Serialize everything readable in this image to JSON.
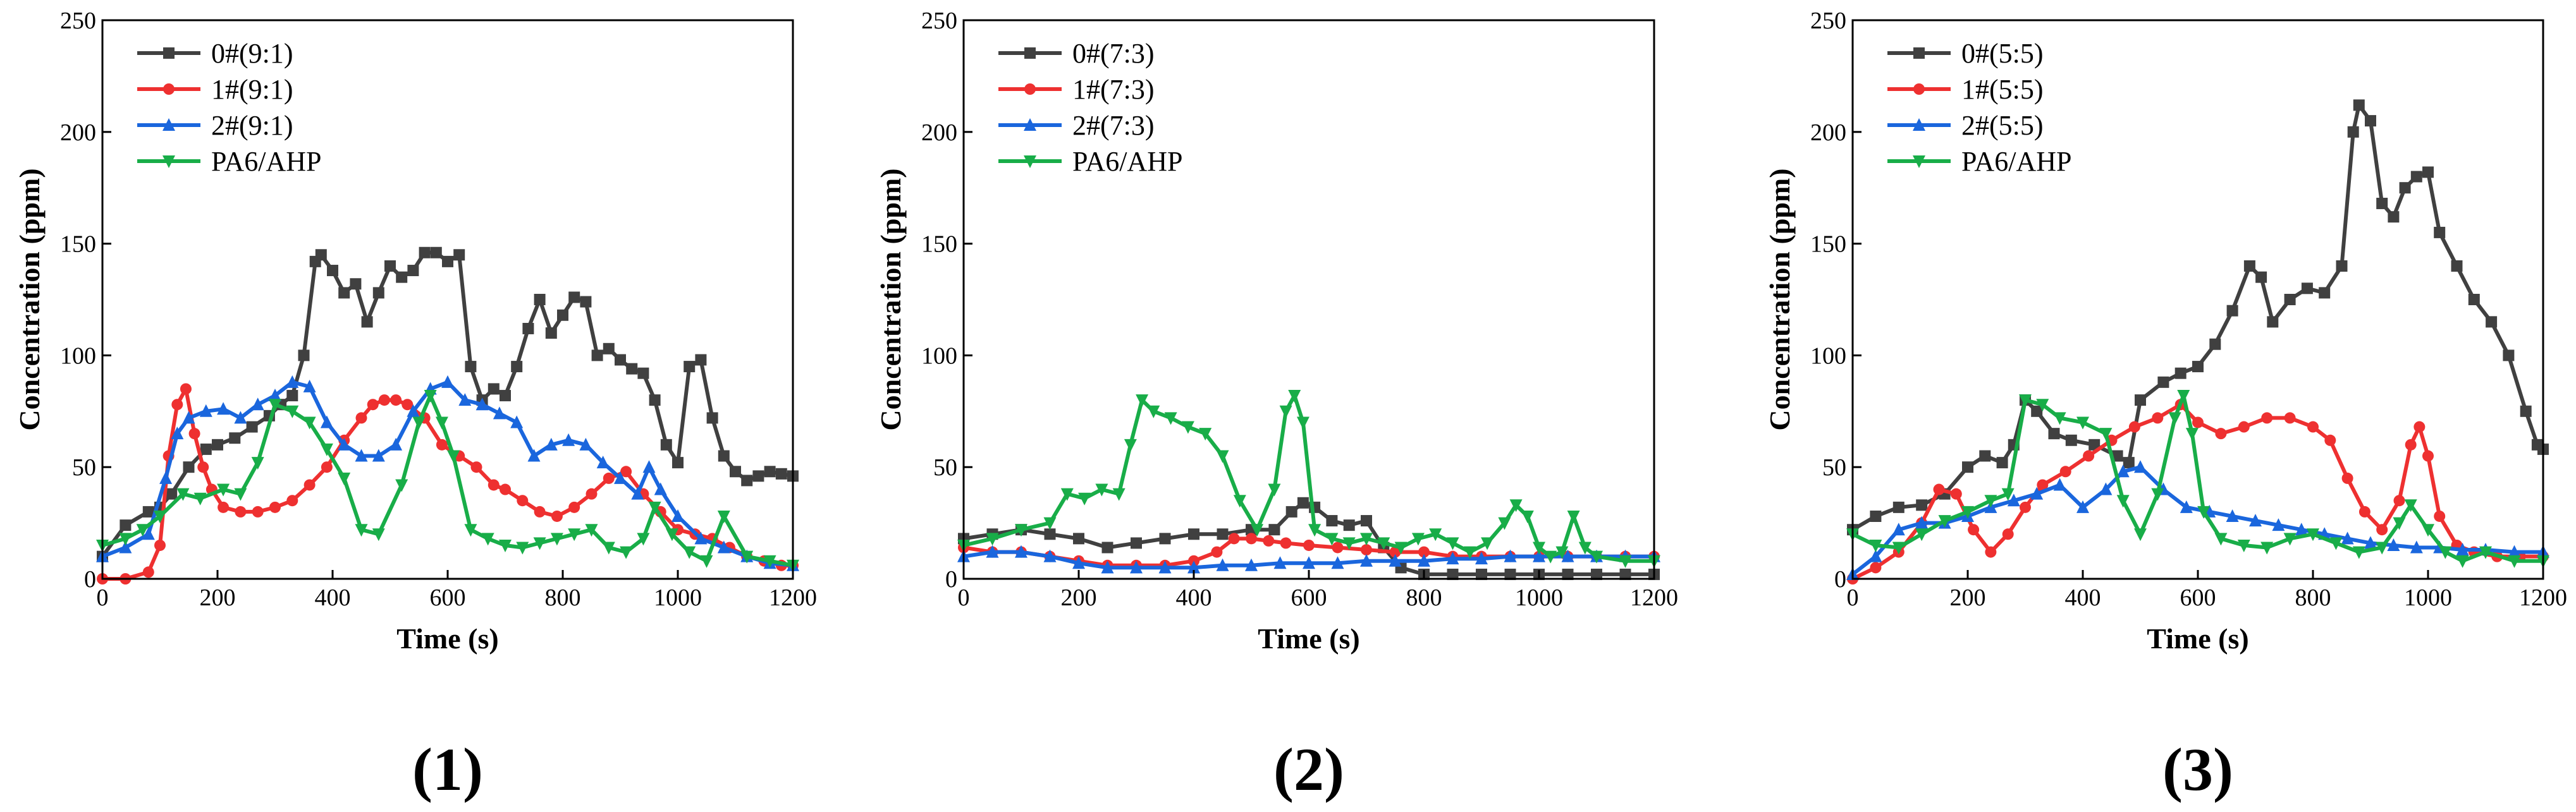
{
  "colors": {
    "0#": "#404040",
    "1#": "#ee3030",
    "2#": "#1a66dd",
    "PA6/AHP": "#18ad48"
  },
  "chart_data": [
    {
      "type": "line",
      "panel_label": "(1)",
      "xlabel": "Time (s)",
      "ylabel": "Concentration (ppm)",
      "xlim": [
        0,
        1200
      ],
      "ylim": [
        0,
        250
      ],
      "xticks": [
        0,
        200,
        400,
        600,
        800,
        1000,
        1200
      ],
      "yticks": [
        0,
        50,
        100,
        150,
        200,
        250
      ],
      "legend_position": "top-left",
      "series": [
        {
          "name": "0#(9:1)",
          "key": "0#",
          "marker": "square",
          "x": [
            0,
            40,
            80,
            100,
            120,
            150,
            180,
            200,
            230,
            260,
            290,
            310,
            330,
            350,
            370,
            380,
            400,
            420,
            440,
            460,
            480,
            500,
            520,
            540,
            560,
            580,
            600,
            620,
            640,
            660,
            680,
            700,
            720,
            740,
            760,
            780,
            800,
            820,
            840,
            860,
            880,
            900,
            920,
            940,
            960,
            980,
            1000,
            1020,
            1040,
            1060,
            1080,
            1100,
            1120,
            1140,
            1160,
            1180,
            1200
          ],
          "y": [
            10,
            24,
            30,
            32,
            38,
            50,
            58,
            60,
            63,
            68,
            73,
            78,
            82,
            100,
            142,
            145,
            138,
            128,
            132,
            115,
            128,
            140,
            135,
            138,
            146,
            146,
            142,
            145,
            95,
            80,
            85,
            82,
            95,
            112,
            125,
            110,
            118,
            126,
            124,
            100,
            103,
            98,
            94,
            92,
            80,
            60,
            52,
            95,
            98,
            72,
            55,
            48,
            44,
            46,
            48,
            47,
            46
          ]
        },
        {
          "name": "1#(9:1)",
          "key": "1#",
          "marker": "circle",
          "x": [
            0,
            40,
            80,
            100,
            115,
            130,
            145,
            160,
            175,
            190,
            210,
            240,
            270,
            300,
            330,
            360,
            390,
            420,
            450,
            470,
            490,
            510,
            530,
            560,
            590,
            620,
            650,
            680,
            700,
            730,
            760,
            790,
            820,
            850,
            880,
            910,
            940,
            970,
            1000,
            1030,
            1060,
            1090,
            1120,
            1150,
            1180,
            1200
          ],
          "y": [
            0,
            0,
            3,
            15,
            55,
            78,
            85,
            65,
            50,
            40,
            32,
            30,
            30,
            32,
            35,
            42,
            50,
            62,
            72,
            78,
            80,
            80,
            78,
            72,
            60,
            55,
            50,
            42,
            40,
            35,
            30,
            28,
            32,
            38,
            45,
            48,
            38,
            30,
            22,
            20,
            18,
            14,
            10,
            8,
            6,
            6
          ]
        },
        {
          "name": "2#(9:1)",
          "key": "2#",
          "marker": "triangle-up",
          "x": [
            0,
            40,
            80,
            110,
            130,
            150,
            180,
            210,
            240,
            270,
            300,
            330,
            360,
            390,
            420,
            450,
            480,
            510,
            540,
            570,
            600,
            630,
            660,
            690,
            720,
            750,
            780,
            810,
            840,
            870,
            900,
            930,
            950,
            970,
            1000,
            1040,
            1080,
            1120,
            1160,
            1200
          ],
          "y": [
            10,
            14,
            20,
            45,
            65,
            72,
            75,
            76,
            72,
            78,
            82,
            88,
            86,
            70,
            60,
            55,
            55,
            60,
            75,
            85,
            88,
            80,
            78,
            74,
            70,
            55,
            60,
            62,
            60,
            52,
            45,
            38,
            50,
            40,
            28,
            18,
            14,
            10,
            7,
            6
          ]
        },
        {
          "name": "PA6/AHP",
          "key": "PA6/AHP",
          "marker": "triangle-down",
          "x": [
            0,
            40,
            70,
            100,
            140,
            170,
            210,
            240,
            270,
            300,
            330,
            360,
            390,
            420,
            450,
            480,
            520,
            550,
            570,
            590,
            610,
            640,
            670,
            700,
            730,
            760,
            790,
            820,
            850,
            880,
            910,
            940,
            960,
            990,
            1020,
            1050,
            1080,
            1120,
            1160,
            1200
          ],
          "y": [
            15,
            18,
            22,
            28,
            38,
            36,
            40,
            38,
            52,
            78,
            75,
            70,
            58,
            45,
            22,
            20,
            42,
            70,
            82,
            70,
            55,
            22,
            18,
            15,
            14,
            16,
            18,
            20,
            22,
            14,
            12,
            18,
            32,
            20,
            12,
            8,
            28,
            10,
            8,
            6
          ]
        }
      ]
    },
    {
      "type": "line",
      "panel_label": "(2)",
      "xlabel": "Time (s)",
      "ylabel": "Concentration (ppm)",
      "xlim": [
        0,
        1200
      ],
      "ylim": [
        0,
        250
      ],
      "xticks": [
        0,
        200,
        400,
        600,
        800,
        1000,
        1200
      ],
      "yticks": [
        0,
        50,
        100,
        150,
        200,
        250
      ],
      "legend_position": "top-left",
      "series": [
        {
          "name": "0#(7:3)",
          "key": "0#",
          "marker": "square",
          "x": [
            0,
            50,
            100,
            150,
            200,
            250,
            300,
            350,
            400,
            450,
            500,
            540,
            570,
            590,
            610,
            640,
            670,
            700,
            730,
            760,
            800,
            850,
            900,
            950,
            1000,
            1050,
            1100,
            1150,
            1200
          ],
          "y": [
            18,
            20,
            22,
            20,
            18,
            14,
            16,
            18,
            20,
            20,
            22,
            22,
            30,
            34,
            32,
            26,
            24,
            26,
            14,
            5,
            2,
            2,
            2,
            2,
            2,
            2,
            2,
            2,
            2
          ]
        },
        {
          "name": "1#(7:3)",
          "key": "1#",
          "marker": "circle",
          "x": [
            0,
            50,
            100,
            150,
            200,
            250,
            300,
            350,
            400,
            440,
            470,
            500,
            530,
            560,
            600,
            650,
            700,
            750,
            800,
            850,
            900,
            950,
            1000,
            1050,
            1100,
            1150,
            1200
          ],
          "y": [
            14,
            12,
            12,
            10,
            8,
            6,
            6,
            6,
            8,
            12,
            18,
            18,
            17,
            16,
            15,
            14,
            13,
            12,
            12,
            10,
            10,
            10,
            10,
            10,
            10,
            10,
            10
          ]
        },
        {
          "name": "2#(7:3)",
          "key": "2#",
          "marker": "triangle-up",
          "x": [
            0,
            50,
            100,
            150,
            200,
            250,
            300,
            350,
            400,
            450,
            500,
            550,
            600,
            650,
            700,
            750,
            800,
            850,
            900,
            950,
            1000,
            1050,
            1100,
            1150,
            1200
          ],
          "y": [
            10,
            12,
            12,
            10,
            7,
            5,
            5,
            5,
            5,
            6,
            6,
            7,
            7,
            7,
            8,
            8,
            8,
            9,
            9,
            10,
            10,
            10,
            10,
            10,
            10
          ]
        },
        {
          "name": "PA6/AHP",
          "key": "PA6/AHP",
          "marker": "triangle-down",
          "x": [
            0,
            50,
            100,
            150,
            180,
            210,
            240,
            270,
            290,
            310,
            330,
            360,
            390,
            420,
            450,
            480,
            510,
            540,
            560,
            575,
            590,
            610,
            640,
            670,
            700,
            730,
            760,
            790,
            820,
            850,
            880,
            910,
            940,
            960,
            980,
            1000,
            1020,
            1040,
            1060,
            1080,
            1100,
            1150,
            1200
          ],
          "y": [
            15,
            18,
            22,
            25,
            38,
            36,
            40,
            38,
            60,
            80,
            75,
            72,
            68,
            65,
            55,
            35,
            22,
            40,
            75,
            82,
            70,
            22,
            18,
            16,
            18,
            16,
            14,
            18,
            20,
            16,
            12,
            16,
            25,
            33,
            28,
            14,
            10,
            12,
            28,
            14,
            10,
            8,
            8
          ]
        }
      ]
    },
    {
      "type": "line",
      "panel_label": "(3)",
      "xlabel": "Time (s)",
      "ylabel": "Concentration (ppm)",
      "xlim": [
        0,
        1200
      ],
      "ylim": [
        0,
        250
      ],
      "xticks": [
        0,
        200,
        400,
        600,
        800,
        1000,
        1200
      ],
      "yticks": [
        0,
        50,
        100,
        150,
        200,
        250
      ],
      "legend_position": "top-left",
      "series": [
        {
          "name": "0#(5:5)",
          "key": "0#",
          "marker": "square",
          "x": [
            0,
            40,
            80,
            120,
            160,
            200,
            230,
            260,
            280,
            300,
            320,
            350,
            380,
            420,
            460,
            480,
            500,
            540,
            570,
            600,
            630,
            660,
            690,
            710,
            730,
            760,
            790,
            820,
            850,
            870,
            880,
            900,
            920,
            940,
            960,
            980,
            1000,
            1020,
            1050,
            1080,
            1110,
            1140,
            1170,
            1190,
            1200
          ],
          "y": [
            22,
            28,
            32,
            33,
            38,
            50,
            55,
            52,
            60,
            80,
            75,
            65,
            62,
            60,
            55,
            52,
            80,
            88,
            92,
            95,
            105,
            120,
            140,
            135,
            115,
            125,
            130,
            128,
            140,
            200,
            212,
            205,
            168,
            162,
            175,
            180,
            182,
            155,
            140,
            125,
            115,
            100,
            75,
            60,
            58
          ]
        },
        {
          "name": "1#(5:5)",
          "key": "1#",
          "marker": "circle",
          "x": [
            0,
            40,
            80,
            120,
            150,
            180,
            210,
            240,
            270,
            300,
            330,
            370,
            410,
            450,
            490,
            530,
            570,
            600,
            640,
            680,
            720,
            760,
            800,
            830,
            860,
            890,
            920,
            950,
            970,
            985,
            1000,
            1020,
            1050,
            1080,
            1120,
            1160,
            1200
          ],
          "y": [
            0,
            5,
            12,
            25,
            40,
            38,
            22,
            12,
            20,
            32,
            42,
            48,
            55,
            62,
            68,
            72,
            78,
            70,
            65,
            68,
            72,
            72,
            68,
            62,
            45,
            30,
            22,
            35,
            60,
            68,
            55,
            28,
            15,
            12,
            10,
            10,
            10
          ]
        },
        {
          "name": "2#(5:5)",
          "key": "2#",
          "marker": "triangle-up",
          "x": [
            0,
            40,
            80,
            120,
            160,
            200,
            240,
            280,
            320,
            360,
            400,
            440,
            470,
            500,
            540,
            580,
            620,
            660,
            700,
            740,
            780,
            820,
            860,
            900,
            940,
            980,
            1020,
            1060,
            1100,
            1150,
            1200
          ],
          "y": [
            2,
            10,
            22,
            25,
            25,
            28,
            32,
            35,
            38,
            42,
            32,
            40,
            48,
            50,
            40,
            32,
            30,
            28,
            26,
            24,
            22,
            20,
            18,
            16,
            15,
            14,
            14,
            13,
            13,
            12,
            12
          ]
        },
        {
          "name": "PA6/AHP",
          "key": "PA6/AHP",
          "marker": "triangle-down",
          "x": [
            0,
            40,
            80,
            120,
            160,
            200,
            240,
            270,
            300,
            330,
            360,
            400,
            440,
            470,
            500,
            530,
            560,
            575,
            590,
            610,
            640,
            680,
            720,
            760,
            800,
            840,
            880,
            920,
            950,
            970,
            1000,
            1030,
            1060,
            1100,
            1150,
            1200
          ],
          "y": [
            20,
            15,
            14,
            20,
            26,
            30,
            35,
            38,
            80,
            78,
            72,
            70,
            65,
            35,
            20,
            38,
            72,
            82,
            65,
            30,
            18,
            15,
            14,
            18,
            20,
            16,
            12,
            14,
            25,
            33,
            22,
            12,
            8,
            12,
            8,
            8
          ]
        }
      ]
    }
  ]
}
